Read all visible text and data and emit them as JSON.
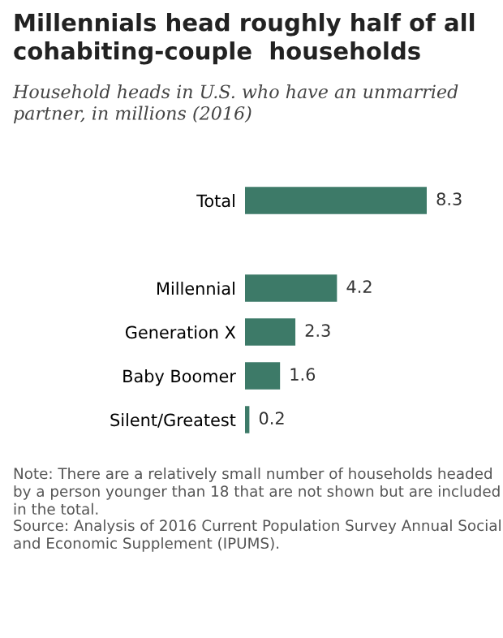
{
  "chart_data": {
    "type": "bar",
    "orientation": "horizontal",
    "title": "Millennials head roughly half of all cohabiting-couple  households",
    "subtitle": "Household heads in U.S. who have an unmarried partner, in millions (2016)",
    "categories": [
      "Total",
      null,
      "Millennial",
      "Generation X",
      "Baby Boomer",
      "Silent/Greatest"
    ],
    "values": [
      8.3,
      null,
      4.2,
      2.3,
      1.6,
      0.2
    ],
    "color": "#3d7a68",
    "data_labels": true,
    "grid": false,
    "legend": false,
    "annotations": [
      "Note: There are a relatively small number of households headed by a person younger than 18 that are not shown but are included in the total.",
      "Source: Analysis of 2016 Current Population Survey Annual Social and Economic Supplement (IPUMS)."
    ]
  }
}
